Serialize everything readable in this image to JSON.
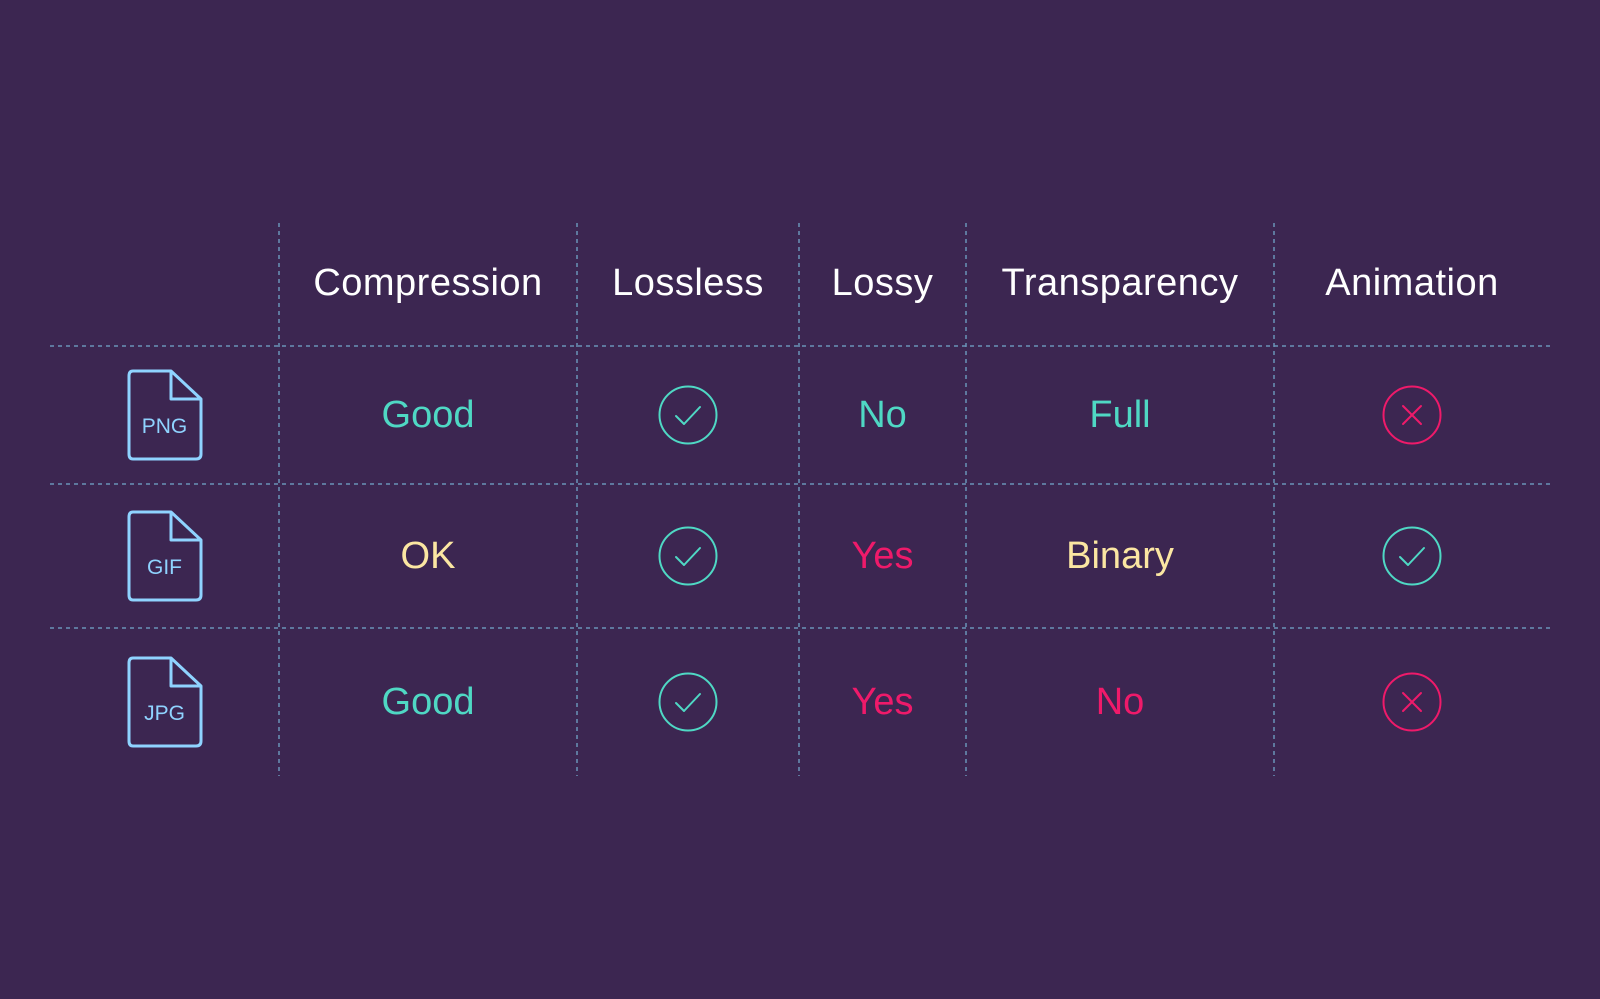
{
  "colors": {
    "background": "#3c2651",
    "header_text": "#ffffff",
    "good": "#4fd8c4",
    "neutral": "#fbe6a2",
    "bad": "#ef1a6a",
    "grid_line": "#6a94b8",
    "file_icon": "#8fd3ff"
  },
  "headers": [
    "Compression",
    "Lossless",
    "Lossy",
    "Transparency",
    "Animation"
  ],
  "rows": [
    {
      "format": "PNG",
      "icon": "file-icon",
      "compression": {
        "text": "Good",
        "tone": "good"
      },
      "lossless": {
        "icon": "check-circle-icon",
        "tone": "good"
      },
      "lossy": {
        "text": "No",
        "tone": "good"
      },
      "transparency": {
        "text": "Full",
        "tone": "good"
      },
      "animation": {
        "icon": "x-circle-icon",
        "tone": "bad"
      }
    },
    {
      "format": "GIF",
      "icon": "file-icon",
      "compression": {
        "text": "OK",
        "tone": "neutral"
      },
      "lossless": {
        "icon": "check-circle-icon",
        "tone": "good"
      },
      "lossy": {
        "text": "Yes",
        "tone": "bad"
      },
      "transparency": {
        "text": "Binary",
        "tone": "neutral"
      },
      "animation": {
        "icon": "check-circle-icon",
        "tone": "good"
      }
    },
    {
      "format": "JPG",
      "icon": "file-icon",
      "compression": {
        "text": "Good",
        "tone": "good"
      },
      "lossless": {
        "icon": "check-circle-icon",
        "tone": "good"
      },
      "lossy": {
        "text": "Yes",
        "tone": "bad"
      },
      "transparency": {
        "text": "No",
        "tone": "bad"
      },
      "animation": {
        "icon": "x-circle-icon",
        "tone": "bad"
      }
    }
  ]
}
